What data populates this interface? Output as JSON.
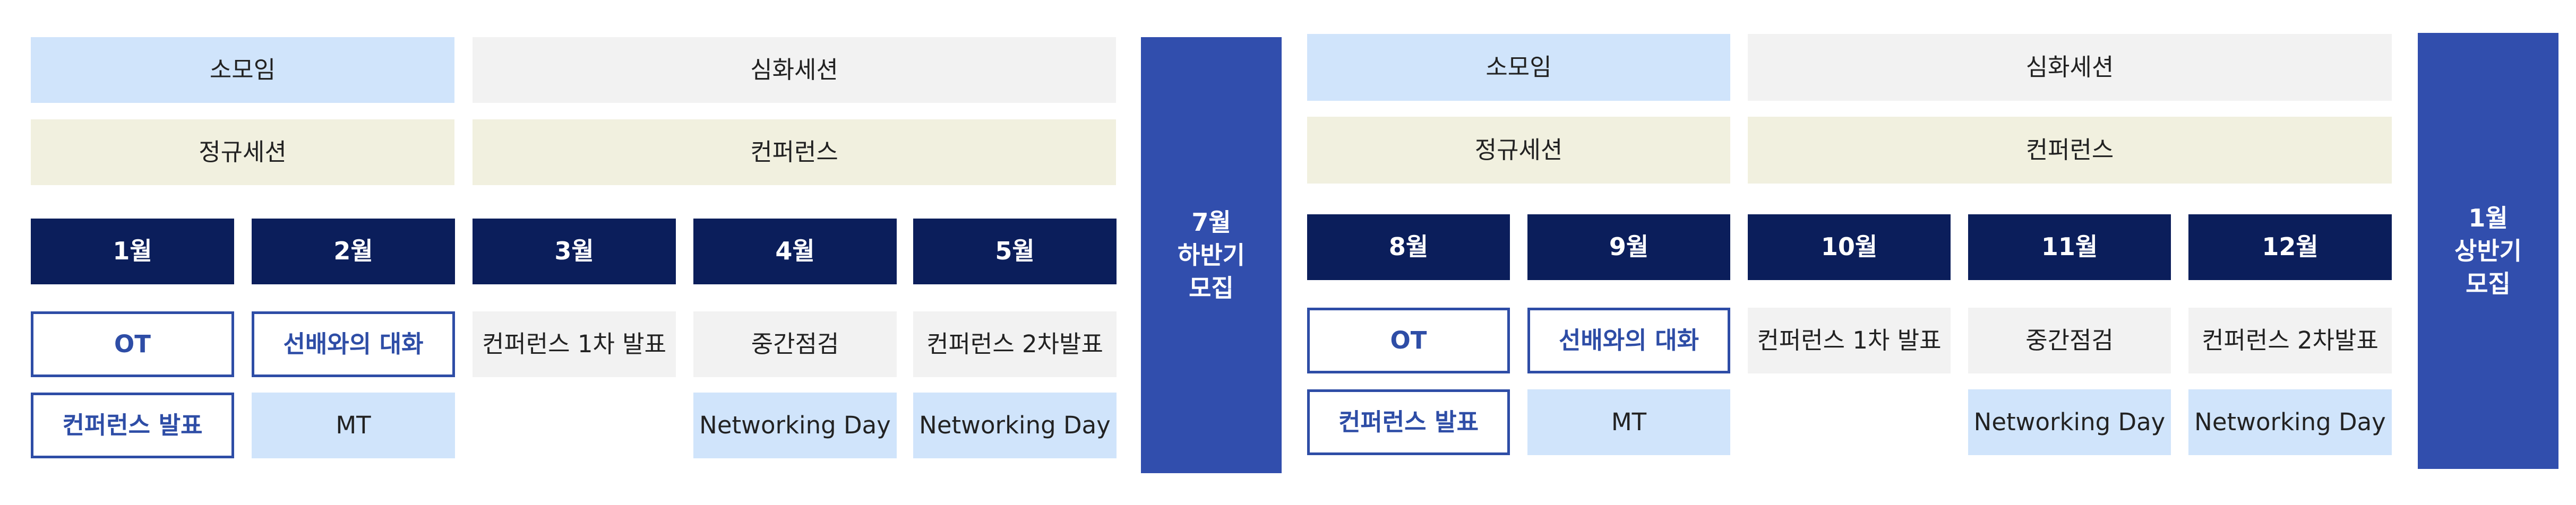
{
  "colors": {
    "activity_blue": "#d0e4fb",
    "regular_beige": "#f1f0df",
    "event_gray": "#f2f2f2",
    "month_navy": "#0b1e5b",
    "outline_blue": "#2e4da6",
    "recruit_blue": "#314ead"
  },
  "first_half": {
    "categories": {
      "small_group": "소모임",
      "advanced_session": "심화세션",
      "regular_session": "정규세션",
      "conference": "컨퍼런스"
    },
    "months": [
      "1월",
      "2월",
      "3월",
      "4월",
      "5월"
    ],
    "row1": [
      "OT",
      "선배와의 대화",
      "컨퍼런스 1차 발표",
      "중간점검",
      "컨퍼런스 2차발표"
    ],
    "row2": [
      "컨퍼런스 발표",
      "MT",
      "Networking Day",
      "Networking Day"
    ],
    "recruit": "7월\n하반기\n모집"
  },
  "second_half": {
    "categories": {
      "small_group": "소모임",
      "advanced_session": "심화세션",
      "regular_session": "정규세션",
      "conference": "컨퍼런스"
    },
    "months": [
      "8월",
      "9월",
      "10월",
      "11월",
      "12월"
    ],
    "row1": [
      "OT",
      "선배와의 대화",
      "컨퍼런스 1차 발표",
      "중간점검",
      "컨퍼런스 2차발표"
    ],
    "row2": [
      "컨퍼런스 발표",
      "MT",
      "Networking Day",
      "Networking Day"
    ],
    "recruit": "1월\n상반기\n모집"
  }
}
